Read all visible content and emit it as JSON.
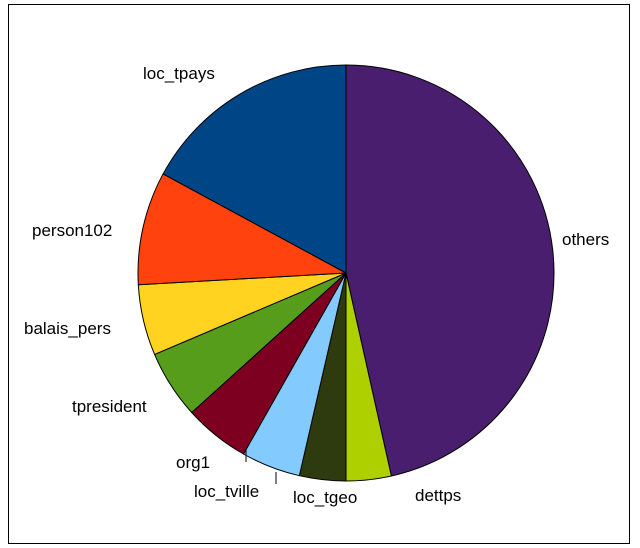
{
  "chart_data": {
    "type": "pie",
    "title": "",
    "legend": "none",
    "slices": [
      {
        "label": "others",
        "value": 46.5,
        "color": "#4a1e6e"
      },
      {
        "label": "dettps",
        "value": 3.5,
        "color": "#aecf00"
      },
      {
        "label": "loc_tgeo",
        "value": 3.6,
        "color": "#2e3b0f"
      },
      {
        "label": "loc_tville",
        "value": 4.6,
        "color": "#83caff"
      },
      {
        "label": "org1",
        "value": 5.1,
        "color": "#7e0021"
      },
      {
        "label": "tpresident",
        "value": 5.3,
        "color": "#579d1c"
      },
      {
        "label": "balais_pers",
        "value": 5.5,
        "color": "#ffd320"
      },
      {
        "label": "person102",
        "value": 8.8,
        "color": "#ff420e"
      },
      {
        "label": "loc_tpays",
        "value": 17.1,
        "color": "#004586"
      }
    ]
  }
}
